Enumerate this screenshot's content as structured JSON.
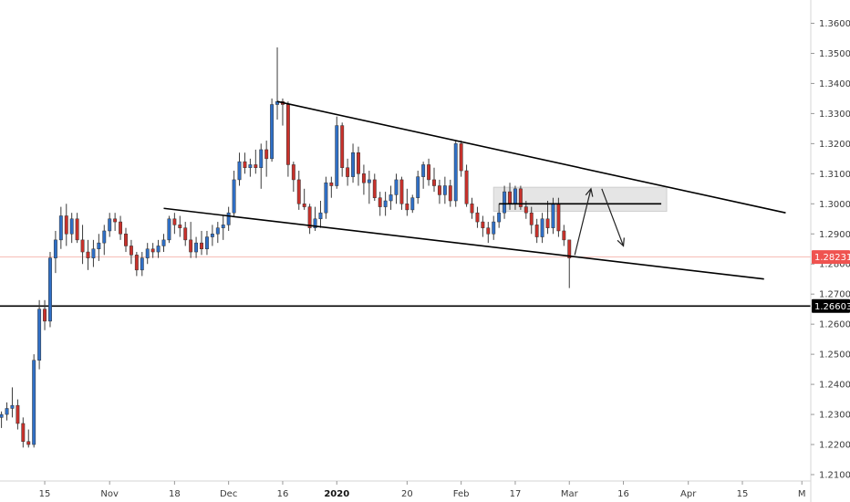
{
  "chart_data": {
    "type": "candlestick",
    "ylim": [
      1.2035,
      1.3663
    ],
    "y_ticks": [
      "1.36000",
      "1.35000",
      "1.34000",
      "1.33000",
      "1.32000",
      "1.31000",
      "1.30000",
      "1.29000",
      "1.28000",
      "1.27000",
      "1.26000",
      "1.25000",
      "1.24000",
      "1.23000",
      "1.22000",
      "1.21000"
    ],
    "x_ticks": [
      {
        "label": "15",
        "bar": 8,
        "bold": false
      },
      {
        "label": "Nov",
        "bar": 20,
        "bold": false
      },
      {
        "label": "18",
        "bar": 32,
        "bold": false
      },
      {
        "label": "Dec",
        "bar": 42,
        "bold": false
      },
      {
        "label": "16",
        "bar": 52,
        "bold": false
      },
      {
        "label": "2020",
        "bar": 62,
        "bold": true
      },
      {
        "label": "20",
        "bar": 75,
        "bold": false
      },
      {
        "label": "Feb",
        "bar": 85,
        "bold": false
      },
      {
        "label": "17",
        "bar": 95,
        "bold": false
      },
      {
        "label": "Mar",
        "bar": 105,
        "bold": false
      },
      {
        "label": "16",
        "bar": 115,
        "bold": false
      },
      {
        "label": "Apr",
        "bar": 127,
        "bold": false
      },
      {
        "label": "15",
        "bar": 137,
        "bold": false
      },
      {
        "label": "M",
        "bar": 148,
        "bold": false
      }
    ],
    "candles": [
      [
        1.229,
        1.231,
        1.2255,
        1.23
      ],
      [
        1.23,
        1.234,
        1.228,
        1.232
      ],
      [
        1.232,
        1.239,
        1.229,
        1.233
      ],
      [
        1.233,
        1.235,
        1.225,
        1.227
      ],
      [
        1.227,
        1.229,
        1.219,
        1.221
      ],
      [
        1.221,
        1.225,
        1.219,
        1.22
      ],
      [
        1.22,
        1.25,
        1.219,
        1.248
      ],
      [
        1.248,
        1.268,
        1.245,
        1.265
      ],
      [
        1.265,
        1.268,
        1.258,
        1.261
      ],
      [
        1.261,
        1.284,
        1.259,
        1.282
      ],
      [
        1.282,
        1.291,
        1.277,
        1.288
      ],
      [
        1.288,
        1.299,
        1.285,
        1.296
      ],
      [
        1.296,
        1.3,
        1.286,
        1.29
      ],
      [
        1.29,
        1.297,
        1.287,
        1.295
      ],
      [
        1.295,
        1.297,
        1.287,
        1.288
      ],
      [
        1.288,
        1.293,
        1.28,
        1.284
      ],
      [
        1.284,
        1.288,
        1.278,
        1.282
      ],
      [
        1.282,
        1.288,
        1.279,
        1.285
      ],
      [
        1.285,
        1.29,
        1.281,
        1.287
      ],
      [
        1.287,
        1.293,
        1.283,
        1.291
      ],
      [
        1.291,
        1.297,
        1.289,
        1.295
      ],
      [
        1.295,
        1.297,
        1.291,
        1.294
      ],
      [
        1.294,
        1.296,
        1.288,
        1.29
      ],
      [
        1.29,
        1.292,
        1.284,
        1.286
      ],
      [
        1.286,
        1.288,
        1.28,
        1.283
      ],
      [
        1.283,
        1.284,
        1.276,
        1.278
      ],
      [
        1.278,
        1.284,
        1.276,
        1.282
      ],
      [
        1.282,
        1.287,
        1.28,
        1.285
      ],
      [
        1.285,
        1.287,
        1.282,
        1.284
      ],
      [
        1.284,
        1.288,
        1.282,
        1.286
      ],
      [
        1.286,
        1.29,
        1.284,
        1.288
      ],
      [
        1.288,
        1.296,
        1.287,
        1.295
      ],
      [
        1.295,
        1.297,
        1.29,
        1.293
      ],
      [
        1.293,
        1.296,
        1.289,
        1.292
      ],
      [
        1.292,
        1.294,
        1.286,
        1.288
      ],
      [
        1.288,
        1.294,
        1.282,
        1.284
      ],
      [
        1.284,
        1.289,
        1.282,
        1.287
      ],
      [
        1.287,
        1.291,
        1.283,
        1.285
      ],
      [
        1.285,
        1.291,
        1.283,
        1.289
      ],
      [
        1.289,
        1.293,
        1.286,
        1.29
      ],
      [
        1.29,
        1.294,
        1.287,
        1.292
      ],
      [
        1.292,
        1.296,
        1.288,
        1.293
      ],
      [
        1.293,
        1.299,
        1.291,
        1.297
      ],
      [
        1.297,
        1.311,
        1.296,
        1.308
      ],
      [
        1.308,
        1.317,
        1.306,
        1.314
      ],
      [
        1.314,
        1.317,
        1.31,
        1.312
      ],
      [
        1.312,
        1.315,
        1.309,
        1.313
      ],
      [
        1.313,
        1.318,
        1.31,
        1.312
      ],
      [
        1.312,
        1.32,
        1.305,
        1.318
      ],
      [
        1.318,
        1.321,
        1.309,
        1.315
      ],
      [
        1.315,
        1.335,
        1.314,
        1.333
      ],
      [
        1.333,
        1.352,
        1.328,
        1.334
      ],
      [
        1.334,
        1.335,
        1.326,
        1.333
      ],
      [
        1.333,
        1.334,
        1.309,
        1.313
      ],
      [
        1.313,
        1.314,
        1.304,
        1.308
      ],
      [
        1.308,
        1.311,
        1.298,
        1.3
      ],
      [
        1.3,
        1.305,
        1.298,
        1.299
      ],
      [
        1.299,
        1.3,
        1.29,
        1.292
      ],
      [
        1.292,
        1.299,
        1.291,
        1.295
      ],
      [
        1.295,
        1.301,
        1.292,
        1.297
      ],
      [
        1.297,
        1.309,
        1.295,
        1.307
      ],
      [
        1.307,
        1.309,
        1.302,
        1.306
      ],
      [
        1.306,
        1.329,
        1.305,
        1.326
      ],
      [
        1.326,
        1.327,
        1.309,
        1.312
      ],
      [
        1.312,
        1.315,
        1.306,
        1.309
      ],
      [
        1.309,
        1.32,
        1.307,
        1.317
      ],
      [
        1.317,
        1.319,
        1.306,
        1.31
      ],
      [
        1.31,
        1.313,
        1.303,
        1.307
      ],
      [
        1.307,
        1.311,
        1.3,
        1.308
      ],
      [
        1.308,
        1.31,
        1.301,
        1.302
      ],
      [
        1.302,
        1.304,
        1.296,
        1.299
      ],
      [
        1.299,
        1.304,
        1.296,
        1.301
      ],
      [
        1.301,
        1.306,
        1.298,
        1.303
      ],
      [
        1.303,
        1.31,
        1.3,
        1.308
      ],
      [
        1.308,
        1.309,
        1.298,
        1.3
      ],
      [
        1.3,
        1.305,
        1.296,
        1.298
      ],
      [
        1.298,
        1.303,
        1.297,
        1.302
      ],
      [
        1.302,
        1.311,
        1.3,
        1.309
      ],
      [
        1.309,
        1.314,
        1.305,
        1.313
      ],
      [
        1.313,
        1.315,
        1.306,
        1.308
      ],
      [
        1.308,
        1.312,
        1.304,
        1.306
      ],
      [
        1.306,
        1.308,
        1.3,
        1.303
      ],
      [
        1.303,
        1.309,
        1.3,
        1.306
      ],
      [
        1.306,
        1.308,
        1.299,
        1.301
      ],
      [
        1.301,
        1.321,
        1.299,
        1.32
      ],
      [
        1.32,
        1.321,
        1.309,
        1.311
      ],
      [
        1.311,
        1.313,
        1.299,
        1.3
      ],
      [
        1.3,
        1.302,
        1.295,
        1.297
      ],
      [
        1.297,
        1.299,
        1.292,
        1.294
      ],
      [
        1.294,
        1.296,
        1.289,
        1.292
      ],
      [
        1.292,
        1.294,
        1.287,
        1.29
      ],
      [
        1.29,
        1.296,
        1.288,
        1.294
      ],
      [
        1.294,
        1.3,
        1.292,
        1.297
      ],
      [
        1.297,
        1.306,
        1.295,
        1.304
      ],
      [
        1.304,
        1.307,
        1.298,
        1.3
      ],
      [
        1.3,
        1.306,
        1.298,
        1.305
      ],
      [
        1.305,
        1.306,
        1.298,
        1.299
      ],
      [
        1.299,
        1.301,
        1.295,
        1.297
      ],
      [
        1.297,
        1.299,
        1.29,
        1.293
      ],
      [
        1.293,
        1.295,
        1.287,
        1.289
      ],
      [
        1.289,
        1.297,
        1.287,
        1.295
      ],
      [
        1.295,
        1.301,
        1.29,
        1.292
      ],
      [
        1.292,
        1.302,
        1.29,
        1.3
      ],
      [
        1.3,
        1.302,
        1.289,
        1.291
      ],
      [
        1.291,
        1.293,
        1.286,
        1.288
      ],
      [
        1.288,
        1.288,
        1.272,
        1.282
      ]
    ],
    "trend_lines": [
      {
        "name": "upper-trendline",
        "points": [
          [
            51,
            1.334
          ],
          [
            145,
            1.297
          ]
        ]
      },
      {
        "name": "lower-trendline",
        "points": [
          [
            30,
            1.2985
          ],
          [
            141,
            1.275
          ]
        ]
      },
      {
        "name": "resistance-line",
        "points": [
          [
            92,
            1.3
          ],
          [
            122,
            1.3
          ]
        ]
      }
    ],
    "horizontal_lines": [
      {
        "name": "support-line",
        "price": 1.26603,
        "color": "#000000",
        "width": 1.6
      },
      {
        "name": "last-price-line",
        "price": 1.28231,
        "color": "#f4a99f",
        "width": 0.8
      }
    ],
    "zone": {
      "from_bar": 91,
      "to_bar": 123,
      "top": 1.3055,
      "bottom": 1.2975
    },
    "projection_arrows": [
      {
        "name": "projection-arrow-up",
        "points": [
          [
            106,
            1.283
          ],
          [
            109,
            1.305
          ]
        ]
      },
      {
        "name": "projection-arrow-down",
        "points": [
          [
            111,
            1.305
          ],
          [
            115,
            1.286
          ]
        ]
      }
    ],
    "price_badges": [
      {
        "name": "last-price-badge",
        "price": 1.28231,
        "label": "1.28231",
        "color": "#ef5350"
      },
      {
        "name": "support-price-badge",
        "price": 1.26603,
        "label": "1.26603",
        "color": "#000000"
      }
    ],
    "colors": {
      "up": "#2f6fc6",
      "down": "#c8312b",
      "wick": "#3b3b3b",
      "grid_axis": "#d6d6d6",
      "zone": "#e1e1e1"
    }
  }
}
